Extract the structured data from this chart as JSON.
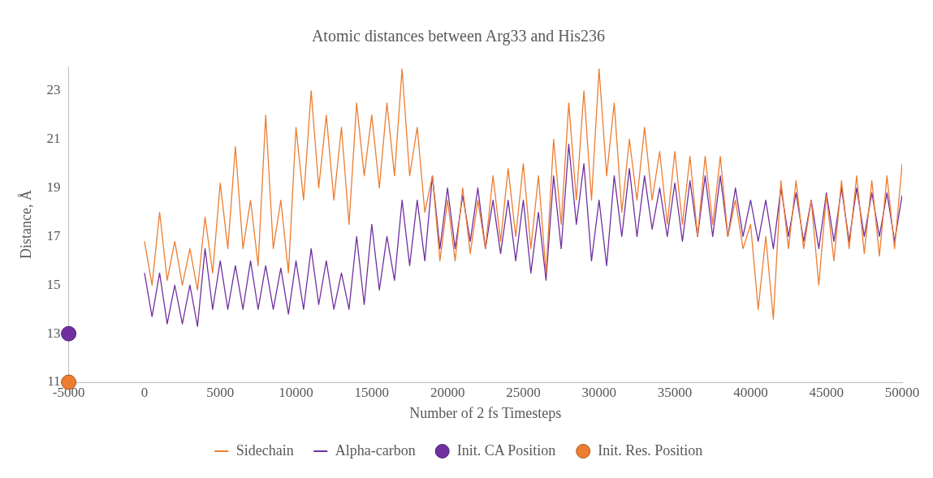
{
  "chart_data": {
    "type": "line",
    "title": "Atomic distances between Arg33 and His236",
    "xlabel": "Number of 2 fs Timesteps",
    "ylabel": "Distance, Å",
    "x": [
      0,
      500,
      1000,
      1500,
      2000,
      2500,
      3000,
      3500,
      4000,
      4500,
      5000,
      5500,
      6000,
      6500,
      7000,
      7500,
      8000,
      8500,
      9000,
      9500,
      10000,
      10500,
      11000,
      11500,
      12000,
      12500,
      13000,
      13500,
      14000,
      14500,
      15000,
      15500,
      16000,
      16500,
      17000,
      17500,
      18000,
      18500,
      19000,
      19500,
      20000,
      20500,
      21000,
      21500,
      22000,
      22500,
      23000,
      23500,
      24000,
      24500,
      25000,
      25500,
      26000,
      26500,
      27000,
      27500,
      28000,
      28500,
      29000,
      29500,
      30000,
      30500,
      31000,
      31500,
      32000,
      32500,
      33000,
      33500,
      34000,
      34500,
      35000,
      35500,
      36000,
      36500,
      37000,
      37500,
      38000,
      38500,
      39000,
      39500,
      40000,
      40500,
      41000,
      41500,
      42000,
      42500,
      43000,
      43500,
      44000,
      44500,
      45000,
      45500,
      46000,
      46500,
      47000,
      47500,
      48000,
      48500,
      49000,
      49500,
      50000
    ],
    "series": [
      {
        "name": "Sidechain",
        "type": "line",
        "color": "#ed7d31",
        "values": [
          16.8,
          15.0,
          18.0,
          15.2,
          16.8,
          15.0,
          16.5,
          14.8,
          17.8,
          15.5,
          19.2,
          16.5,
          20.7,
          16.5,
          18.5,
          15.8,
          22.0,
          16.5,
          18.5,
          15.5,
          21.5,
          18.5,
          23.0,
          19.0,
          22.0,
          18.5,
          21.5,
          17.5,
          22.5,
          19.5,
          22.0,
          19.0,
          22.5,
          19.5,
          23.9,
          19.5,
          21.5,
          18.0,
          19.5,
          16.0,
          18.5,
          16.0,
          19.0,
          16.3,
          18.5,
          16.5,
          19.5,
          16.8,
          19.8,
          17.0,
          20.0,
          16.5,
          19.5,
          15.5,
          21.0,
          17.5,
          22.5,
          18.5,
          23.0,
          18.5,
          23.9,
          19.5,
          22.5,
          18.0,
          21.0,
          18.5,
          21.5,
          18.5,
          20.5,
          17.5,
          20.5,
          17.5,
          20.3,
          17.0,
          20.3,
          17.5,
          20.3,
          17.0,
          18.5,
          16.5,
          17.5,
          14.0,
          17.0,
          13.6,
          19.3,
          16.5,
          19.3,
          16.5,
          18.5,
          15.0,
          18.7,
          16.0,
          19.3,
          16.5,
          19.5,
          16.3,
          19.3,
          16.2,
          19.5,
          16.5,
          20.0
        ]
      },
      {
        "name": "Alpha-carbon",
        "type": "line",
        "color": "#7030a0",
        "values": [
          15.5,
          13.7,
          15.5,
          13.4,
          15.0,
          13.4,
          15.0,
          13.3,
          16.5,
          14.0,
          16.0,
          14.0,
          15.8,
          14.0,
          16.0,
          14.0,
          15.8,
          14.0,
          15.7,
          13.8,
          16.0,
          14.0,
          16.5,
          14.2,
          16.0,
          14.0,
          15.5,
          14.0,
          17.0,
          14.2,
          17.5,
          14.8,
          17.0,
          15.2,
          18.5,
          15.8,
          18.5,
          16.0,
          19.5,
          16.5,
          19.0,
          16.5,
          18.7,
          16.8,
          19.0,
          16.5,
          18.5,
          16.3,
          18.5,
          16.0,
          18.5,
          15.5,
          18.0,
          15.2,
          19.5,
          16.5,
          20.8,
          17.5,
          20.0,
          16.0,
          18.5,
          15.8,
          19.5,
          17.0,
          19.8,
          17.0,
          19.5,
          17.3,
          19.0,
          17.0,
          19.2,
          16.8,
          19.3,
          17.0,
          19.5,
          17.0,
          19.5,
          17.0,
          19.0,
          17.0,
          18.5,
          16.8,
          18.5,
          16.5,
          19.0,
          17.0,
          18.8,
          16.8,
          18.5,
          16.5,
          18.8,
          16.8,
          19.0,
          16.8,
          19.0,
          17.0,
          18.8,
          17.0,
          18.8,
          16.8,
          18.7
        ]
      },
      {
        "name": "Init. CA Position",
        "type": "scatter",
        "marker": "circle",
        "color": "#7030a0",
        "x": [
          -5000
        ],
        "values": [
          13
        ]
      },
      {
        "name": "Init. Res. Position",
        "type": "scatter",
        "marker": "circle",
        "color": "#ed7d31",
        "x": [
          -5000
        ],
        "values": [
          11
        ]
      }
    ],
    "xlim": [
      -5000,
      50000
    ],
    "xticks": [
      -5000,
      0,
      5000,
      10000,
      15000,
      20000,
      25000,
      30000,
      35000,
      40000,
      45000,
      50000
    ],
    "ylim": [
      11,
      24
    ],
    "yticks": [
      11,
      13,
      15,
      17,
      19,
      21,
      23
    ],
    "grid": false,
    "legend": "bottom"
  }
}
